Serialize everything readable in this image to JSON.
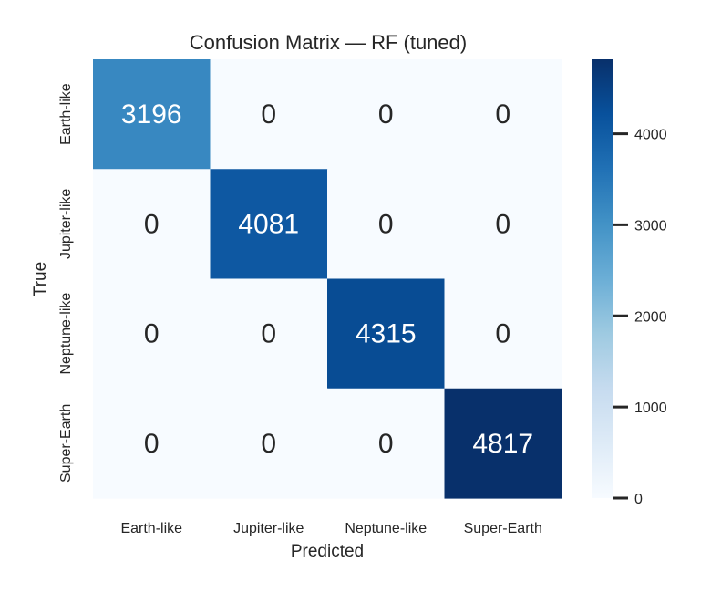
{
  "chart_data": {
    "type": "heatmap",
    "title": "Confusion Matrix — RF (tuned)",
    "xlabel": "Predicted",
    "ylabel": "True",
    "x_categories": [
      "Earth-like",
      "Jupiter-like",
      "Neptune-like",
      "Super-Earth"
    ],
    "y_categories": [
      "Earth-like",
      "Jupiter-like",
      "Neptune-like",
      "Super-Earth"
    ],
    "values": [
      [
        3196,
        0,
        0,
        0
      ],
      [
        0,
        4081,
        0,
        0
      ],
      [
        0,
        0,
        4315,
        0
      ],
      [
        0,
        0,
        0,
        4817
      ]
    ],
    "colorbar": {
      "min": 0,
      "max": 4817,
      "ticks": [
        0,
        1000,
        2000,
        3000,
        4000
      ],
      "colormap": "Blues"
    },
    "grid": false
  }
}
